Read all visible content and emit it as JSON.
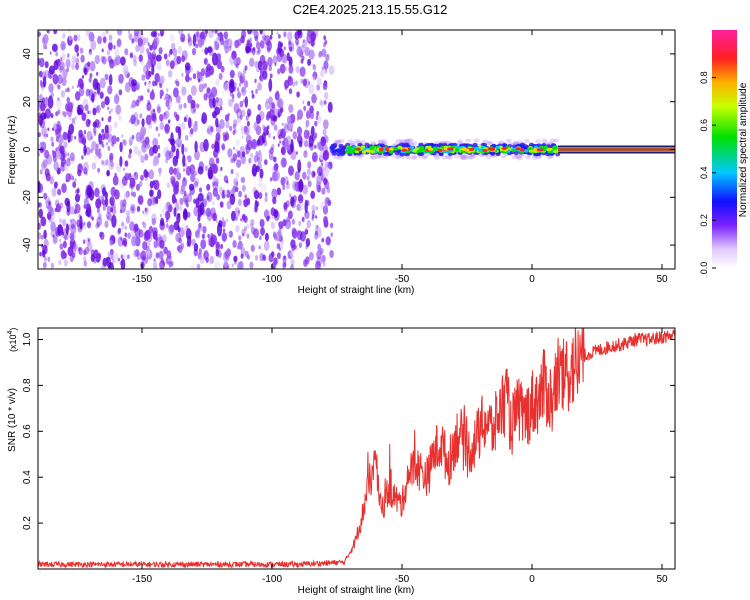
{
  "title": "C2E4.2025.213.15.55.G12",
  "colors": {
    "snr_line": "#e8312e",
    "noise_dot": "#7b1fe6",
    "track_core": "#ff2020",
    "axis": "#000000"
  },
  "chart_data": [
    {
      "type": "heatmap",
      "title": "C2E4.2025.213.15.55.G12",
      "xlabel": "Height of straight line (km)",
      "ylabel": "Frequency (Hz)",
      "xlim": [
        -190,
        55
      ],
      "ylim": [
        -50,
        50
      ],
      "xticks": [
        "-150",
        "-100",
        "-50",
        "0",
        "50"
      ],
      "yticks": [
        "-40",
        "-20",
        "0",
        "20",
        "40"
      ],
      "noise_region_x": [
        -190,
        -77
      ],
      "signal_track": {
        "frequency_hz": 0,
        "start_height_km": -77,
        "end_height_km": 55,
        "strong_from_km": 10
      },
      "colorbar": {
        "label": "Normalized spectral amplitude",
        "range": [
          0,
          1
        ],
        "ticks": [
          "0.0",
          "0.2",
          "0.4",
          "0.6",
          "0.8"
        ]
      }
    },
    {
      "type": "line",
      "xlabel": "Height of straight line (km)",
      "ylabel": "SNR (10 * v/v)",
      "scale_note": "(x10⁴)",
      "scale_base": "(x10",
      "scale_exp": "4",
      "xlim": [
        -190,
        55
      ],
      "ylim": [
        0,
        1.05
      ],
      "xticks": [
        "-150",
        "-100",
        "-50",
        "0",
        "50"
      ],
      "yticks": [
        "0.2",
        "0.4",
        "0.6",
        "0.8",
        "1.0"
      ],
      "series": [
        {
          "x": [
            -190,
            -160,
            -120,
            -90,
            -72,
            -68,
            -66,
            -64,
            -62,
            -60,
            -58,
            -55,
            -52,
            -50,
            -48,
            -45,
            -42,
            -40,
            -38,
            -35,
            -32,
            -30,
            -28,
            -25,
            -22,
            -20,
            -18,
            -15,
            -12,
            -10,
            -8,
            -5,
            -3,
            0,
            3,
            5,
            8,
            10,
            12,
            15,
            18,
            20,
            25,
            30,
            35,
            40,
            45,
            50,
            55
          ],
          "y": [
            0.02,
            0.02,
            0.02,
            0.02,
            0.03,
            0.12,
            0.2,
            0.3,
            0.4,
            0.45,
            0.25,
            0.35,
            0.3,
            0.28,
            0.4,
            0.45,
            0.42,
            0.4,
            0.5,
            0.55,
            0.45,
            0.55,
            0.6,
            0.5,
            0.55,
            0.6,
            0.65,
            0.6,
            0.7,
            0.75,
            0.62,
            0.7,
            0.65,
            0.72,
            0.75,
            0.8,
            0.72,
            0.85,
            0.82,
            0.88,
            0.9,
            0.93,
            0.95,
            0.97,
            0.98,
            1.0,
            1.0,
            1.01,
            1.02
          ]
        }
      ]
    }
  ]
}
